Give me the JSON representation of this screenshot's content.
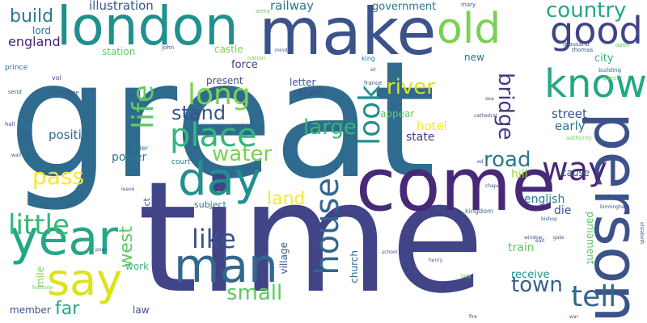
{
  "words": [
    {
      "text": "great",
      "color": "#2f6b8e"
    },
    {
      "text": "time",
      "color": "#414487"
    },
    {
      "text": "make",
      "color": "#3b528b"
    },
    {
      "text": "london",
      "color": "#20908d"
    },
    {
      "text": "come",
      "color": "#482878"
    },
    {
      "text": "person",
      "color": "#3b528b"
    },
    {
      "text": "year",
      "color": "#22a884"
    },
    {
      "text": "man",
      "color": "#31688e"
    },
    {
      "text": "day",
      "color": "#21908d"
    },
    {
      "text": "say",
      "color": "#dde318"
    },
    {
      "text": "old",
      "color": "#7ad151"
    },
    {
      "text": "good",
      "color": "#404387"
    },
    {
      "text": "know",
      "color": "#22a884"
    },
    {
      "text": "place",
      "color": "#35b779"
    },
    {
      "text": "long",
      "color": "#7ad151"
    },
    {
      "text": "life",
      "color": "#5ec962"
    },
    {
      "text": "house",
      "color": "#31688e"
    },
    {
      "text": "way",
      "color": "#482878"
    },
    {
      "text": "tell",
      "color": "#31688e"
    },
    {
      "text": "look",
      "color": "#21908d"
    },
    {
      "text": "little",
      "color": "#35b779"
    },
    {
      "text": "like",
      "color": "#3b528b"
    },
    {
      "text": "country",
      "color": "#22a884"
    },
    {
      "text": "road",
      "color": "#2a788e"
    },
    {
      "text": "water",
      "color": "#7ad151"
    },
    {
      "text": "stand",
      "color": "#3b528b"
    },
    {
      "text": "large",
      "color": "#35b779"
    },
    {
      "text": "river",
      "color": "#dde318"
    },
    {
      "text": "pass",
      "color": "#fde725"
    },
    {
      "text": "town",
      "color": "#355f8d"
    },
    {
      "text": "small",
      "color": "#5ec962"
    },
    {
      "text": "bridge",
      "color": "#443983"
    },
    {
      "text": "build",
      "color": "#2a788e"
    },
    {
      "text": "west",
      "color": "#5ec962"
    },
    {
      "text": "far",
      "color": "#22a884"
    },
    {
      "text": "land",
      "color": "#fde725"
    },
    {
      "text": "railway",
      "color": "#2a788e"
    },
    {
      "text": "illustration",
      "color": "#3b528b"
    },
    {
      "text": "england",
      "color": "#481f70"
    },
    {
      "text": "government",
      "color": "#2a788e"
    },
    {
      "text": "street",
      "color": "#3b528b"
    },
    {
      "text": "early",
      "color": "#2a788e"
    },
    {
      "text": "hotel",
      "color": "#fde725"
    },
    {
      "text": "state",
      "color": "#443983"
    },
    {
      "text": "position",
      "color": "#31688e"
    },
    {
      "text": "power",
      "color": "#2a788e"
    },
    {
      "text": "english",
      "color": "#2a788e"
    },
    {
      "text": "die",
      "color": "#3b528b"
    },
    {
      "text": "hill",
      "color": "#a0da39"
    },
    {
      "text": "cause",
      "color": "#3b528b"
    },
    {
      "text": "city",
      "color": "#35b779"
    },
    {
      "text": "new",
      "color": "#2a788e"
    },
    {
      "text": "force",
      "color": "#443983"
    },
    {
      "text": "present",
      "color": "#3b528b"
    },
    {
      "text": "letter",
      "color": "#3b528b"
    },
    {
      "text": "return",
      "color": "#3b528b"
    },
    {
      "text": "appear",
      "color": "#5ec962"
    },
    {
      "text": "castle",
      "color": "#7ad151"
    },
    {
      "text": "station",
      "color": "#5ec962"
    },
    {
      "text": "lord",
      "color": "#2a788e"
    },
    {
      "text": "receive",
      "color": "#21908d"
    },
    {
      "text": "train",
      "color": "#5ec962"
    },
    {
      "text": "parliament",
      "color": "#5ec962"
    },
    {
      "text": "church",
      "color": "#31688e"
    },
    {
      "text": "village",
      "color": "#3b528b"
    },
    {
      "text": "subject",
      "color": "#2a788e"
    },
    {
      "text": "work",
      "color": "#35b779"
    },
    {
      "text": "member",
      "color": "#3b528b"
    },
    {
      "text": "law",
      "color": "#3b528b"
    },
    {
      "text": "mile",
      "color": "#7ad151"
    },
    {
      "text": "act",
      "color": "#3b528b"
    },
    {
      "text": "court",
      "color": "#2a788e"
    },
    {
      "text": "order",
      "color": "#2a788e"
    },
    {
      "text": "king",
      "color": "#2a788e"
    },
    {
      "text": "kingdom",
      "color": "#31688e"
    },
    {
      "text": "nation",
      "color": "#7ad151"
    },
    {
      "text": "france",
      "color": "#3b528b"
    },
    {
      "text": "john",
      "color": "#3b528b"
    },
    {
      "text": "army",
      "color": "#5ec962"
    },
    {
      "text": "mary",
      "color": "#3b528b"
    },
    {
      "text": "thousand",
      "color": "#3b528b"
    },
    {
      "text": "open",
      "color": "#5ec962"
    },
    {
      "text": "thomas",
      "color": "#3b528b"
    },
    {
      "text": "building",
      "color": "#31688e"
    },
    {
      "text": "queen",
      "color": "#7ad151"
    },
    {
      "text": "authority",
      "color": "#7ad151"
    },
    {
      "text": "prince",
      "color": "#31688e"
    },
    {
      "text": "vol",
      "color": "#3b528b"
    },
    {
      "text": "marriage",
      "color": "#3b528b"
    },
    {
      "text": "send",
      "color": "#31688e"
    },
    {
      "text": "hall",
      "color": "#3b528b"
    },
    {
      "text": "century",
      "color": "#3b528b"
    },
    {
      "text": "cathedral",
      "color": "#3b528b"
    },
    {
      "text": "chapel",
      "color": "#3b528b"
    },
    {
      "text": "birmingham",
      "color": "#3b528b"
    },
    {
      "text": "elizabeth",
      "color": "#3b528b"
    },
    {
      "text": "bishop",
      "color": "#3b528b"
    },
    {
      "text": "earl",
      "color": "#3b528b"
    },
    {
      "text": "window",
      "color": "#3b528b"
    },
    {
      "text": "school",
      "color": "#3b528b"
    },
    {
      "text": "henry",
      "color": "#3b528b"
    },
    {
      "text": "pope",
      "color": "#3b528b"
    },
    {
      "text": "footnote",
      "color": "#5ec962"
    },
    {
      "text": "lady",
      "color": "#5ec962"
    },
    {
      "text": "sir",
      "color": "#3b528b"
    },
    {
      "text": "war",
      "color": "#3b528b"
    },
    {
      "text": "gate",
      "color": "#3b528b"
    },
    {
      "text": "ed",
      "color": "#3b528b"
    },
    {
      "text": "sea",
      "color": "#3b528b"
    },
    {
      "text": "leave",
      "color": "#3b528b"
    },
    {
      "text": "mind",
      "color": "#3b528b"
    },
    {
      "text": "fire",
      "color": "#3b528b"
    },
    {
      "text": "wall",
      "color": "#3b528b"
    }
  ]
}
